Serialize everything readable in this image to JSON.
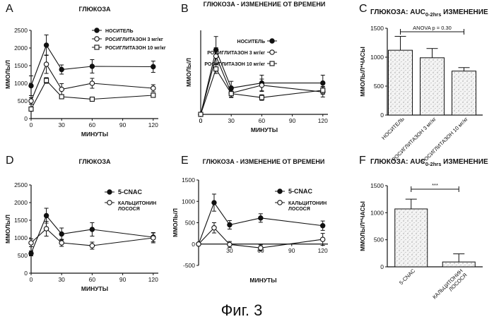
{
  "figure_caption": "Фиг. 3",
  "chart_data": [
    {
      "panel": "A",
      "type": "line",
      "title": "ГЛЮКОЗА",
      "xlabel": "МИНУТЫ",
      "ylabel": "ММОЛЬ/Л",
      "xticks": [
        "0",
        "30",
        "60",
        "90",
        "120"
      ],
      "yticks": [
        "0",
        "500",
        "1000",
        "1500",
        "2000",
        "2500"
      ],
      "xlim": [
        0,
        125
      ],
      "ylim": [
        0,
        2500
      ],
      "x": [
        0,
        15,
        30,
        60,
        120
      ],
      "legend_position": "top-right",
      "series": [
        {
          "name": "НОСИТЕЛЬ",
          "marker": "filled-circle",
          "values": [
            930,
            2080,
            1390,
            1480,
            1470
          ],
          "err": [
            280,
            290,
            130,
            190,
            160
          ]
        },
        {
          "name": "РОСИГЛИТАЗОН 3 мг/кг",
          "marker": "open-circle",
          "values": [
            500,
            1540,
            830,
            1000,
            860
          ],
          "err": [
            90,
            260,
            160,
            140,
            100
          ]
        },
        {
          "name": "РОСИГЛИТАЗОН 10 мг/кг",
          "marker": "open-square",
          "values": [
            270,
            1080,
            620,
            550,
            660
          ],
          "err": [
            50,
            80,
            60,
            40,
            50
          ]
        }
      ]
    },
    {
      "panel": "B",
      "type": "line",
      "title": "ГЛЮКОЗА - ИЗМЕНЕНИЕ ОТ ВРЕМЕНИ",
      "xlabel": "МИНУТЫ",
      "ylabel": "ММОЛЬ/Л",
      "xticks": [
        "0",
        "30",
        "60",
        "90",
        "120"
      ],
      "yticks": [],
      "xlim": [
        0,
        125
      ],
      "ylim": [
        0,
        1500
      ],
      "x": [
        0,
        15,
        30,
        60,
        120
      ],
      "legend_position": "top-right",
      "series": [
        {
          "name": "НОСИТЕЛЬ",
          "marker": "filled-circle",
          "values": [
            0,
            1150,
            470,
            560,
            560
          ],
          "err": [
            0,
            240,
            120,
            140,
            140
          ]
        },
        {
          "name": "РОСИГЛИТАЗОН 3 мг/кг",
          "marker": "open-circle",
          "values": [
            0,
            1040,
            380,
            520,
            400
          ],
          "err": [
            0,
            150,
            80,
            110,
            90
          ]
        },
        {
          "name": "РОСИГЛИТАЗОН 10 мг/кг",
          "marker": "open-square",
          "values": [
            0,
            810,
            370,
            300,
            430
          ],
          "err": [
            0,
            80,
            60,
            50,
            70
          ]
        }
      ]
    },
    {
      "panel": "C",
      "type": "bar",
      "title": "ГЛЮКОЗА: AUC",
      "title_subscript": "0-2hrs",
      "title_suffix": "ИЗМЕНЕНИЕ",
      "ylabel": "ММОЛЬ/Л*ЧАСЫ",
      "categories": [
        "НОСИТЕЛЬ",
        "РОСИГЛИТАЗОН 3 мг/кг",
        "РОСИГЛИТАЗОН 10 мг/кг"
      ],
      "values": [
        1120,
        990,
        760
      ],
      "err": [
        240,
        160,
        60
      ],
      "yticks": [
        "0",
        "500",
        "1000",
        "1500"
      ],
      "ylim": [
        0,
        1500
      ],
      "annotation": "ANOVA p = 0.30"
    },
    {
      "panel": "D",
      "type": "line",
      "title": "ГЛЮКОЗА",
      "xlabel": "МИНУТЫ",
      "ylabel": "ММОЛЬ/Л",
      "xticks": [
        "0",
        "30",
        "60",
        "90",
        "120"
      ],
      "yticks": [
        "0",
        "500",
        "1000",
        "1500",
        "2000",
        "2500"
      ],
      "xlim": [
        0,
        125
      ],
      "ylim": [
        0,
        2500
      ],
      "x": [
        0,
        15,
        30,
        60,
        120
      ],
      "legend_position": "top-right",
      "series": [
        {
          "name": "5-CNAC",
          "marker": "filled-circle",
          "values": [
            560,
            1630,
            1110,
            1240,
            1020
          ],
          "err": [
            70,
            210,
            170,
            190,
            130
          ]
        },
        {
          "name": "КАЛЬЦИТОНИН ЛОСОСЯ",
          "marker": "open-circle",
          "values": [
            860,
            1260,
            860,
            780,
            1000
          ],
          "err": [
            110,
            210,
            100,
            100,
            140
          ]
        }
      ]
    },
    {
      "panel": "E",
      "type": "line",
      "title": "ГЛЮКОЗА - ИЗМЕНЕНИЕ ОТ ВРЕМЕНИ",
      "xlabel": "МИНУТЫ",
      "ylabel": "ММОЛЬ/Л",
      "xticks": [
        "30",
        "60",
        "90",
        "120"
      ],
      "yticks": [
        "-500",
        "0",
        "500",
        "1000",
        "1500"
      ],
      "xlim": [
        0,
        125
      ],
      "ylim": [
        -500,
        1500
      ],
      "x": [
        0,
        15,
        30,
        60,
        120
      ],
      "legend_position": "top-right",
      "series": [
        {
          "name": "5-CNAC",
          "marker": "filled-circle",
          "values": [
            0,
            970,
            450,
            610,
            430
          ],
          "err": [
            0,
            200,
            100,
            100,
            110
          ]
        },
        {
          "name": "КАЛЬЦИТОНИН ЛОСОСЯ",
          "marker": "open-circle",
          "values": [
            0,
            380,
            -10,
            -90,
            110
          ],
          "err": [
            0,
            120,
            70,
            70,
            140
          ]
        }
      ]
    },
    {
      "panel": "F",
      "type": "bar",
      "title": "ГЛЮКОЗА: AUC",
      "title_subscript": "0-2hrs",
      "title_suffix": "ИЗМЕНЕНИЕ",
      "ylabel": "ММОЛЬ/Л*ЧАСЫ",
      "categories": [
        "5-CNAC",
        "КАЛЬЦИТОНИН ЛОСОСЯ"
      ],
      "values": [
        1070,
        90
      ],
      "err": [
        180,
        150
      ],
      "yticks": [
        "0",
        "500",
        "1000",
        "1500"
      ],
      "ylim": [
        0,
        1500
      ],
      "annotation": "***"
    }
  ]
}
